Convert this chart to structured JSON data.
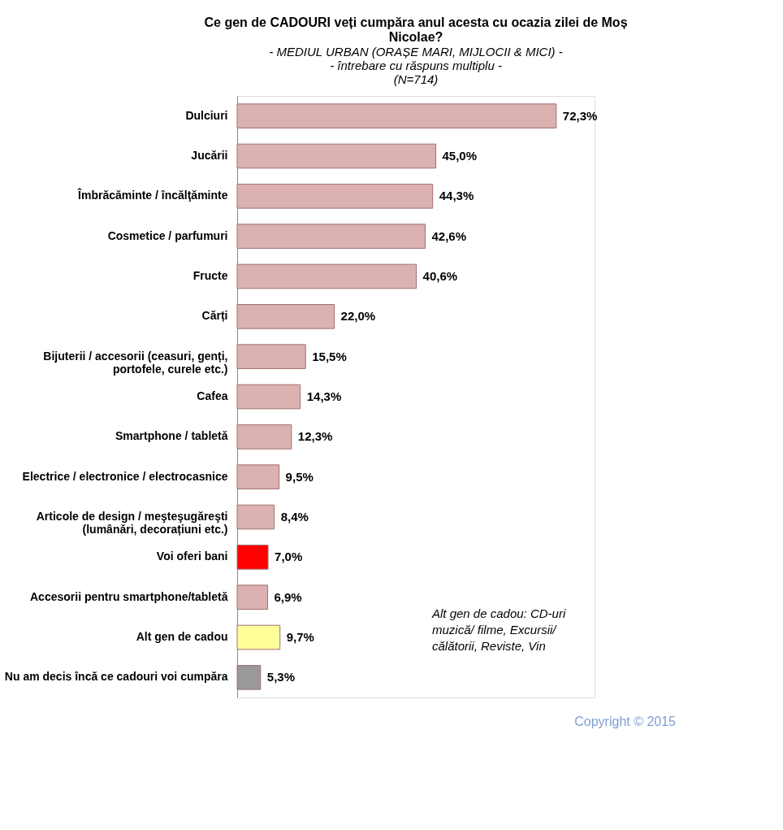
{
  "chart_data": {
    "type": "bar",
    "orientation": "horizontal",
    "title": "Ce gen de CADOURI veți cumpăra anul acesta cu ocazia zilei de Moș Nicolae?",
    "subtitle": "- MEDIUL URBAN (ORAȘE MARI, MIJLOCII & MICI) -\n- întrebare cu răspuns multiplu -\n(N=714)",
    "categories": [
      "Dulciuri",
      "Jucării",
      "Îmbrăcăminte / încălţăminte",
      "Cosmetice / parfumuri",
      "Fructe",
      "Cărți",
      "Bijuterii / accesorii (ceasuri, genți, portofele, curele etc.)",
      "Cafea",
      "Smartphone / tabletă",
      "Electrice / electronice / electrocasnice",
      "Articole de design / meşteşugăreşti (lumânări, decorațiuni etc.)",
      "Voi oferi bani",
      "Accesorii pentru smartphone/tabletă",
      "Alt gen de cadou",
      "Nu am decis încă ce cadouri voi cumpăra"
    ],
    "values": [
      72.3,
      45.0,
      44.3,
      42.6,
      40.6,
      22.0,
      15.5,
      14.3,
      12.3,
      9.5,
      8.4,
      7.0,
      6.9,
      9.7,
      5.3
    ],
    "value_labels": [
      "72,3%",
      "45,0%",
      "44,3%",
      "42,6%",
      "40,6%",
      "22,0%",
      "15,5%",
      "14,3%",
      "12,3%",
      "9,5%",
      "8,4%",
      "7,0%",
      "6,9%",
      "9,7%",
      "5,3%"
    ],
    "colors": [
      "#dbb1b1",
      "#dbb1b1",
      "#dbb1b1",
      "#dbb1b1",
      "#dbb1b1",
      "#dbb1b1",
      "#dbb1b1",
      "#dbb1b1",
      "#dbb1b1",
      "#dbb1b1",
      "#dbb1b1",
      "#ff0000",
      "#dbb1b1",
      "#ffff99",
      "#999999"
    ],
    "annotations": [
      "Alt gen de cadou:  CD-uri muzică/ filme, Excursii/ călătorii, Reviste, Vin",
      "Copyright ©  2015"
    ],
    "grid": false
  }
}
